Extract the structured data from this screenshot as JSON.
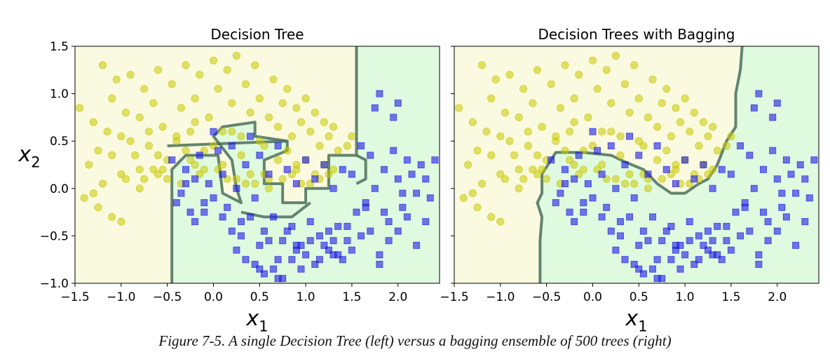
{
  "caption": "Figure 7-5. A single Decision Tree (left) versus a bagging ensemble of 500 trees (right)",
  "colors": {
    "class0_region": "#fafae0",
    "class1_region": "#e0fae0",
    "class0_point": "#c8c800",
    "class1_point": "#1a1ae6",
    "boundary": "#4a6e5a"
  },
  "chart_data": [
    {
      "type": "scatter",
      "title": "Decision Tree",
      "xlabel": "x1",
      "ylabel": "x2",
      "xlim": [
        -1.5,
        2.45
      ],
      "ylim": [
        -1.0,
        1.5
      ],
      "xticks": [
        "−1.5",
        "−1.0",
        "−0.5",
        "0.0",
        "0.5",
        "1.0",
        "1.5",
        "2.0"
      ],
      "xtick_values": [
        -1.5,
        -1.0,
        -0.5,
        0.0,
        0.5,
        1.0,
        1.5,
        2.0
      ],
      "yticks": [
        "1.5",
        "1.0",
        "0.5",
        "0.0",
        "−0.5",
        "−1.0"
      ],
      "ytick_values": [
        1.5,
        1.0,
        0.5,
        0.0,
        -0.5,
        -1.0
      ],
      "grid": false,
      "decision_boundary": [
        [
          [
            -0.45,
            -1.0
          ],
          [
            -0.45,
            0.2
          ],
          [
            -0.3,
            0.35
          ],
          [
            0.05,
            0.35
          ],
          [
            0.1,
            -0.05
          ],
          [
            0.3,
            -0.15
          ],
          [
            0.25,
            0.0
          ],
          [
            0.2,
            0.3
          ],
          [
            0.0,
            0.55
          ],
          [
            0.1,
            0.65
          ],
          [
            0.45,
            0.7
          ],
          [
            0.45,
            0.55
          ],
          [
            0.8,
            0.5
          ],
          [
            0.8,
            0.4
          ],
          [
            0.55,
            0.3
          ],
          [
            0.55,
            0.05
          ],
          [
            0.75,
            0.05
          ],
          [
            0.75,
            -0.15
          ],
          [
            1.0,
            -0.15
          ],
          [
            1.0,
            0.0
          ],
          [
            1.25,
            0.0
          ],
          [
            1.25,
            0.35
          ],
          [
            1.55,
            0.35
          ],
          [
            1.55,
            1.5
          ]
        ],
        [
          [
            -0.5,
            0.45
          ],
          [
            0.8,
            0.5
          ]
        ],
        [
          [
            1.55,
            0.35
          ],
          [
            1.65,
            0.3
          ],
          [
            1.65,
            0.1
          ],
          [
            1.55,
            0.05
          ]
        ],
        [
          [
            0.3,
            -0.25
          ],
          [
            0.55,
            -0.3
          ],
          [
            0.85,
            -0.3
          ],
          [
            1.05,
            -0.15
          ]
        ]
      ],
      "series": [
        {
          "name": "",
          "marker": "circle",
          "x": [
            -1.45,
            -1.3,
            -1.25,
            -1.2,
            -1.15,
            -1.1,
            -1.05,
            -1.0,
            -0.95,
            -0.9,
            -0.85,
            -0.8,
            -0.75,
            -0.7,
            -0.65,
            -0.6,
            -0.55,
            -0.5,
            -0.45,
            -0.4,
            -0.35,
            -0.3,
            -0.25,
            -0.2,
            -0.15,
            -0.1,
            -0.05,
            0.0,
            0.05,
            0.1,
            0.15,
            0.2,
            0.25,
            0.3,
            0.35,
            0.4,
            0.45,
            0.5,
            0.55,
            0.6,
            0.65,
            0.7,
            0.75,
            0.8,
            0.85,
            0.9,
            0.95,
            1.0,
            1.05,
            1.1,
            1.15,
            1.2,
            1.25,
            1.3,
            1.35,
            1.45,
            1.5,
            -1.35,
            -1.2,
            -1.1,
            -1.0,
            -0.9,
            -0.8,
            -0.7,
            -0.6,
            -0.5,
            -0.4,
            -0.3,
            -0.2,
            -0.1,
            0.0,
            0.1,
            0.2,
            0.3,
            0.4,
            0.5,
            0.6,
            0.7,
            0.8,
            0.9,
            1.0,
            1.1,
            1.2,
            1.3,
            -1.4,
            -1.1,
            -0.8,
            -0.6,
            -0.35,
            -0.15,
            0.15,
            0.35,
            0.6,
            0.85,
            1.05,
            1.25,
            -1.3,
            -0.95,
            -0.65,
            -0.25,
            0.05,
            0.45,
            0.75,
            0.95,
            1.15,
            -1.25,
            -1.0,
            -0.75,
            -0.55,
            -0.2,
            0.25,
            0.55,
            0.9
          ],
          "y": [
            0.85,
            0.7,
            0.4,
            1.3,
            0.6,
            0.95,
            1.15,
            0.55,
            0.8,
            1.2,
            0.35,
            0.75,
            1.05,
            0.45,
            0.9,
            1.25,
            0.65,
            0.3,
            1.1,
            0.5,
            0.85,
            1.3,
            0.6,
            0.95,
            1.2,
            0.4,
            0.75,
            1.35,
            1.05,
            0.6,
            1.25,
            0.9,
            1.4,
            0.55,
            1.1,
            0.8,
            1.3,
            0.95,
            0.45,
            0.75,
            1.15,
            0.65,
            0.9,
            1.05,
            0.55,
            0.85,
            0.7,
            0.95,
            0.6,
            0.8,
            0.45,
            0.7,
            0.55,
            0.65,
            0.4,
            0.45,
            0.55,
            0.25,
            0.05,
            0.35,
            0.15,
            0.5,
            0.2,
            0.6,
            0.35,
            0.1,
            0.55,
            0.4,
            0.7,
            0.2,
            0.45,
            0.25,
            0.6,
            0.35,
            0.15,
            0.5,
            0.1,
            0.3,
            0.4,
            0.2,
            0.3,
            0.15,
            0.25,
            0.2,
            -0.1,
            -0.3,
            0.0,
            0.15,
            0.05,
            0.15,
            0.1,
            0.05,
            0.0,
            0.15,
            0.05,
            0.15,
            -0.05,
            0.1,
            0.2,
            0.3,
            0.2,
            0.05,
            0.1,
            0.05,
            0.1,
            -0.2,
            -0.35,
            0.1,
            0.2,
            0.25,
            0.1,
            0.15,
            0.25
          ]
        },
        {
          "name": "",
          "marker": "square",
          "x": [
            -0.45,
            -0.35,
            -0.3,
            -0.25,
            -0.2,
            -0.15,
            -0.1,
            -0.05,
            0.0,
            0.05,
            0.1,
            0.15,
            0.2,
            0.25,
            0.3,
            0.35,
            0.4,
            0.45,
            0.5,
            0.55,
            0.6,
            0.65,
            0.7,
            0.75,
            0.8,
            0.85,
            0.9,
            0.95,
            1.0,
            1.05,
            1.1,
            1.15,
            1.2,
            1.25,
            1.3,
            1.35,
            1.4,
            1.45,
            1.5,
            1.55,
            1.6,
            1.65,
            1.7,
            1.75,
            1.8,
            1.85,
            1.9,
            1.95,
            2.0,
            2.05,
            2.1,
            2.15,
            2.2,
            2.25,
            2.3,
            2.35,
            -0.4,
            -0.2,
            0.0,
            0.2,
            0.4,
            0.6,
            0.8,
            1.0,
            1.2,
            1.4,
            1.6,
            1.8,
            2.0,
            2.2,
            2.4,
            -0.3,
            -0.1,
            0.1,
            0.3,
            0.5,
            0.7,
            0.9,
            1.1,
            1.3,
            1.5,
            1.7,
            1.9,
            2.1,
            2.3,
            0.25,
            0.45,
            0.65,
            0.85,
            1.05,
            1.25,
            1.45,
            1.65,
            1.85,
            2.05,
            0.35,
            0.55,
            0.75,
            0.95,
            1.15,
            1.35,
            1.75,
            1.95,
            0.5,
            0.7,
            0.9,
            1.3,
            1.8,
            2.0
          ],
          "y": [
            0.3,
            -0.05,
            0.2,
            -0.25,
            0.1,
            0.35,
            -0.15,
            0.05,
            0.6,
            0.4,
            0.15,
            -0.2,
            0.45,
            0.0,
            -0.35,
            0.25,
            0.55,
            -0.1,
            0.35,
            -0.45,
            0.15,
            -0.3,
            0.45,
            -0.55,
            0.2,
            -0.4,
            0.05,
            -0.6,
            0.3,
            -0.35,
            0.1,
            -0.5,
            0.25,
            -0.65,
            0.0,
            -0.4,
            0.2,
            -0.55,
            0.15,
            -0.25,
            0.45,
            -0.15,
            0.35,
            0.0,
            1.0,
            0.2,
            -0.35,
            0.4,
            0.1,
            -0.2,
            0.3,
            0.15,
            -0.05,
            0.25,
            0.1,
            -0.1,
            -0.15,
            -0.35,
            -0.1,
            -0.45,
            -0.3,
            -0.55,
            -0.45,
            -0.7,
            -0.6,
            -0.75,
            -0.5,
            -0.7,
            -0.45,
            -0.6,
            0.3,
            0.05,
            -0.25,
            -0.3,
            -0.5,
            -0.6,
            -0.75,
            -0.65,
            -0.8,
            -0.7,
            -0.65,
            -0.45,
            -0.55,
            -0.3,
            -0.35,
            -0.65,
            -0.8,
            -0.85,
            -0.75,
            -0.55,
            -0.45,
            -0.4,
            -0.2,
            -0.25,
            -0.05,
            -0.75,
            -0.9,
            -0.95,
            -0.85,
            -0.75,
            -0.7,
            0.85,
            0.75,
            -0.85,
            -0.95,
            -0.6,
            -0.55,
            -0.8,
            0.9
          ]
        }
      ]
    },
    {
      "type": "scatter",
      "title": "Decision Trees with Bagging",
      "xlabel": "x1",
      "ylabel": "",
      "xlim": [
        -1.5,
        2.45
      ],
      "ylim": [
        -1.0,
        1.5
      ],
      "xticks": [
        "−1.5",
        "−1.0",
        "−0.5",
        "0.0",
        "0.5",
        "1.0",
        "1.5",
        "2.0"
      ],
      "xtick_values": [
        -1.5,
        -1.0,
        -0.5,
        0.0,
        0.5,
        1.0,
        1.5,
        2.0
      ],
      "grid": false,
      "decision_boundary": [
        [
          [
            -0.57,
            -1.0
          ],
          [
            -0.57,
            -0.55
          ],
          [
            -0.55,
            -0.3
          ],
          [
            -0.6,
            -0.15
          ],
          [
            -0.55,
            -0.05
          ],
          [
            -0.55,
            0.15
          ],
          [
            -0.4,
            0.38
          ],
          [
            -0.1,
            0.38
          ],
          [
            0.2,
            0.35
          ],
          [
            0.35,
            0.28
          ],
          [
            0.55,
            0.2
          ],
          [
            0.7,
            0.05
          ],
          [
            0.85,
            -0.05
          ],
          [
            1.0,
            -0.05
          ],
          [
            1.15,
            0.05
          ],
          [
            1.25,
            0.1
          ],
          [
            1.35,
            0.25
          ],
          [
            1.45,
            0.5
          ],
          [
            1.55,
            0.65
          ],
          [
            1.55,
            1.0
          ],
          [
            1.6,
            1.25
          ],
          [
            1.62,
            1.5
          ]
        ]
      ]
    }
  ]
}
